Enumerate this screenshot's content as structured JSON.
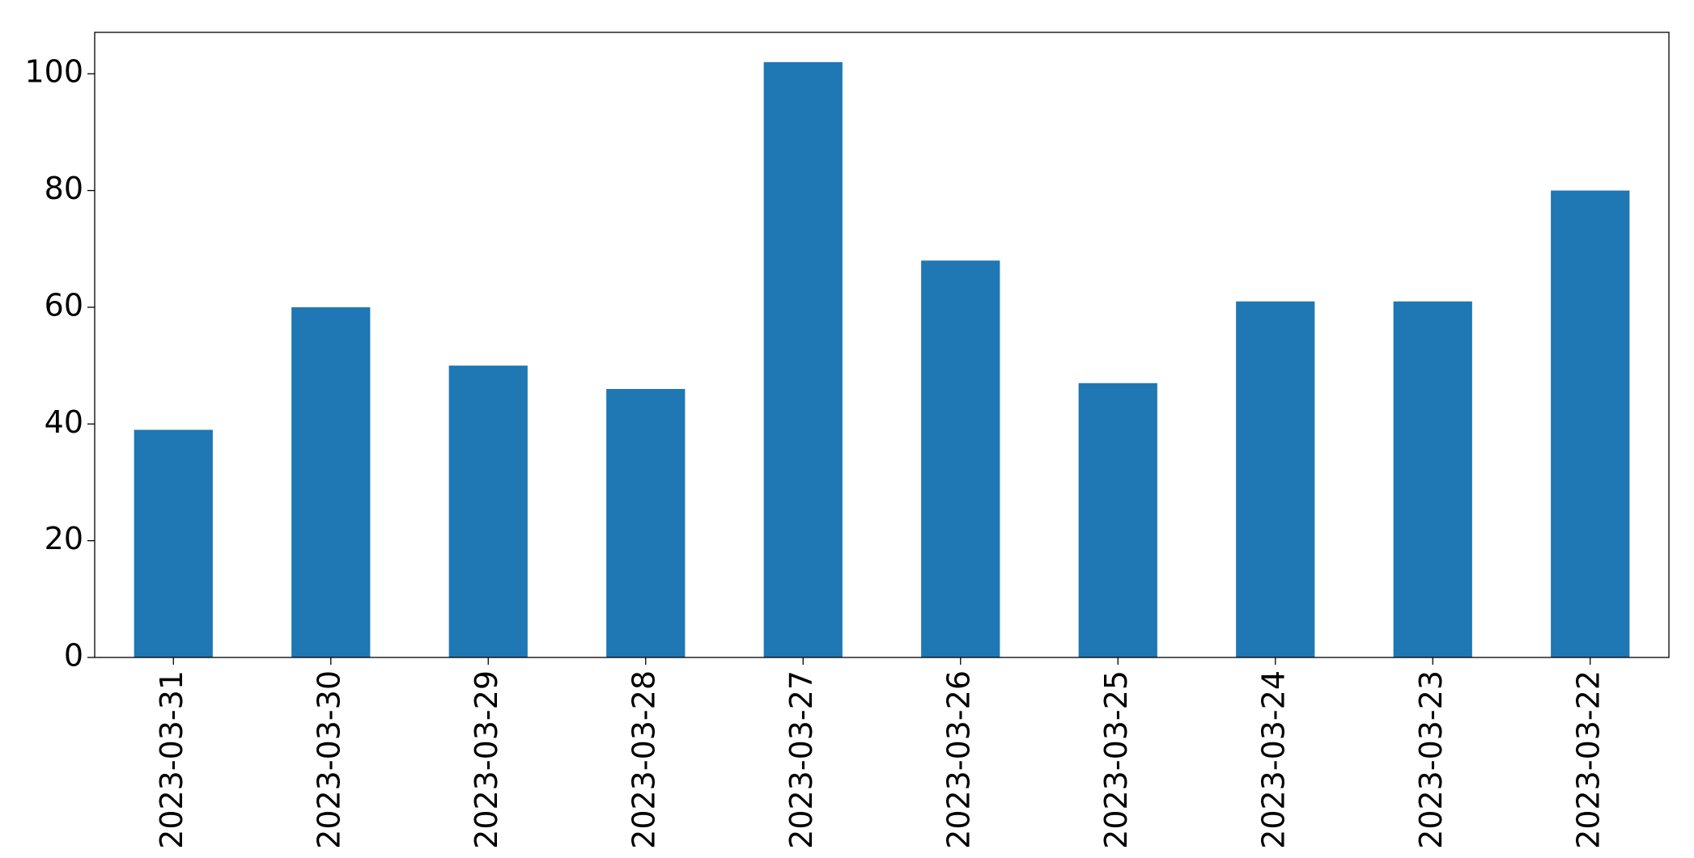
{
  "chart_data": {
    "type": "bar",
    "categories": [
      "2023-03-31",
      "2023-03-30",
      "2023-03-29",
      "2023-03-28",
      "2023-03-27",
      "2023-03-26",
      "2023-03-25",
      "2023-03-24",
      "2023-03-23",
      "2023-03-22"
    ],
    "values": [
      39,
      60,
      50,
      46,
      102,
      68,
      47,
      61,
      61,
      80
    ],
    "color": "#1f77b4",
    "ylim": [
      0,
      107.1
    ],
    "yticks": [
      0,
      20,
      40,
      60,
      80,
      100
    ],
    "grid": false
  }
}
